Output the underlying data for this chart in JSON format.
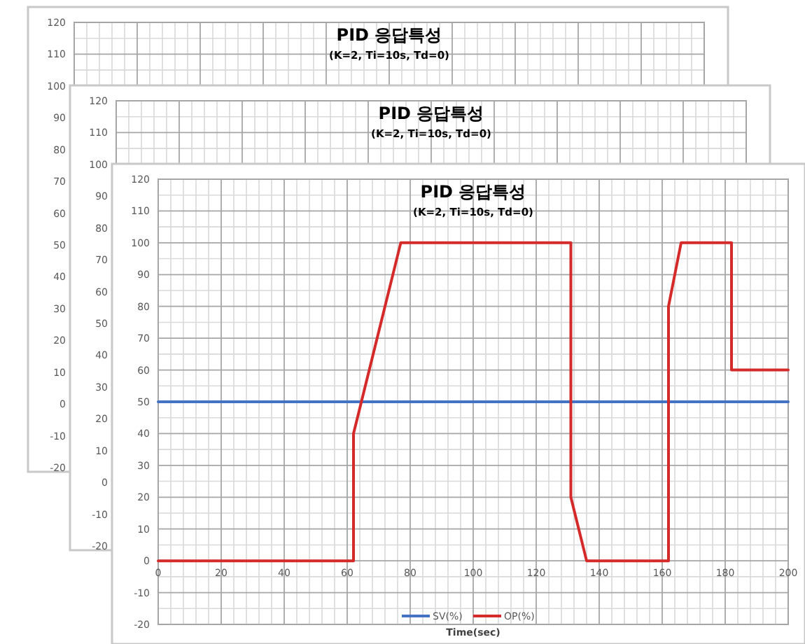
{
  "chart_data": [
    {
      "type": "line",
      "title": "PID 응답특성",
      "subtitle": "(K=2, Ti=10s, Td=0)",
      "xlim": [
        0,
        200
      ],
      "xticks": [
        0,
        20,
        40,
        60,
        80,
        100,
        120,
        140,
        160,
        180,
        200
      ],
      "ylim": [
        -20,
        120
      ],
      "yticks": [
        -20,
        -10,
        0,
        10,
        20,
        30,
        40,
        50,
        60,
        70,
        80,
        90,
        100,
        110,
        120
      ],
      "grid": true,
      "tick_labels": "y"
    },
    {
      "type": "line",
      "title": "PID 응답특성",
      "subtitle": "(K=2, Ti=10s, Td=0)",
      "xlim": [
        0,
        200
      ],
      "xticks": [
        0,
        20,
        40,
        60,
        80,
        100,
        120,
        140,
        160,
        180,
        200
      ],
      "ylim": [
        -20,
        120
      ],
      "yticks": [
        -20,
        -10,
        0,
        10,
        20,
        30,
        40,
        50,
        60,
        70,
        80,
        90,
        100,
        110,
        120
      ],
      "grid": true,
      "tick_labels": "y"
    },
    {
      "type": "line",
      "title": "PID 응답특성",
      "subtitle": "(K=2, Ti=10s, Td=0)",
      "xlabel": "Time(sec)",
      "xlim": [
        0,
        200
      ],
      "xticks": [
        0,
        20,
        40,
        60,
        80,
        100,
        120,
        140,
        160,
        180,
        200
      ],
      "ylim": [
        -20,
        120
      ],
      "yticks": [
        -20,
        -10,
        0,
        10,
        20,
        30,
        40,
        50,
        60,
        70,
        80,
        90,
        100,
        110,
        120
      ],
      "grid": true,
      "legend": "bottom",
      "marker": "none",
      "line_style": "solid",
      "series": [
        {
          "name": "SV(%)",
          "color": "#4472c4",
          "x": [
            0,
            200
          ],
          "values": [
            50,
            50
          ]
        },
        {
          "name": "OP(%)",
          "color": "#d42a2a",
          "x": [
            0,
            62,
            62,
            77,
            131,
            131,
            136,
            162,
            162,
            166,
            182,
            182,
            200
          ],
          "values": [
            0,
            0,
            40,
            100,
            100,
            20,
            0,
            0,
            80,
            100,
            100,
            60,
            60
          ]
        }
      ]
    }
  ]
}
